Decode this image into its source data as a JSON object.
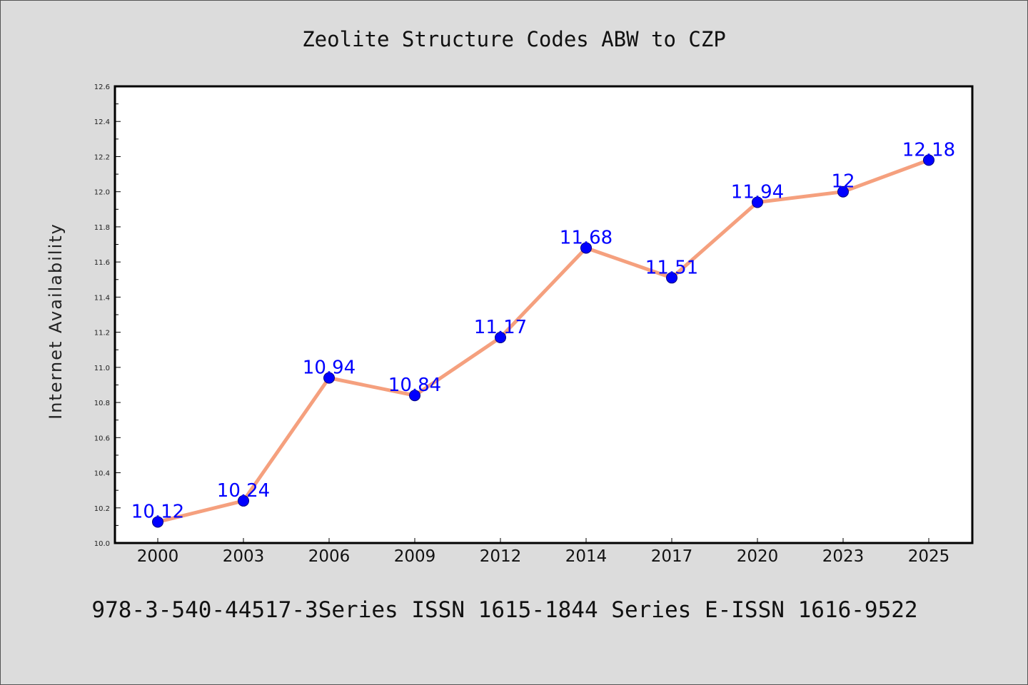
{
  "chart_data": {
    "type": "line",
    "title": "Zeolite Structure Codes ABW to CZP",
    "ylabel": "Internet Availability",
    "xlabel": "",
    "footer": "978-3-540-44517-3Series ISSN 1615-1844 Series E-ISSN 1616-9522",
    "categories": [
      "2000",
      "2003",
      "2006",
      "2009",
      "2012",
      "2014",
      "2017",
      "2020",
      "2023",
      "2025"
    ],
    "series": [
      {
        "values": [
          10.12,
          10.24,
          10.94,
          10.84,
          11.17,
          11.68,
          11.51,
          11.94,
          12,
          12.18
        ],
        "data_labels": [
          "10.12",
          "10.24",
          "10.94",
          "10.84",
          "11.17",
          "11.68",
          "11.51",
          "11.94",
          "12",
          "12.18"
        ]
      }
    ],
    "ylim": [
      10.0,
      12.6
    ],
    "yticks": [
      "10.0",
      "10.2",
      "10.4",
      "10.6",
      "10.8",
      "11.0",
      "11.2",
      "11.4",
      "11.6",
      "11.8",
      "12.0",
      "12.2",
      "12.4",
      "12.6"
    ],
    "grid": false,
    "legend": "none",
    "colors": {
      "line": "#f5a07e",
      "marker": "#0000ff",
      "marker_edge": "#000080",
      "data_label": "#0000ff",
      "background": "#dcdcdc",
      "plot_background": "#ffffff"
    }
  }
}
